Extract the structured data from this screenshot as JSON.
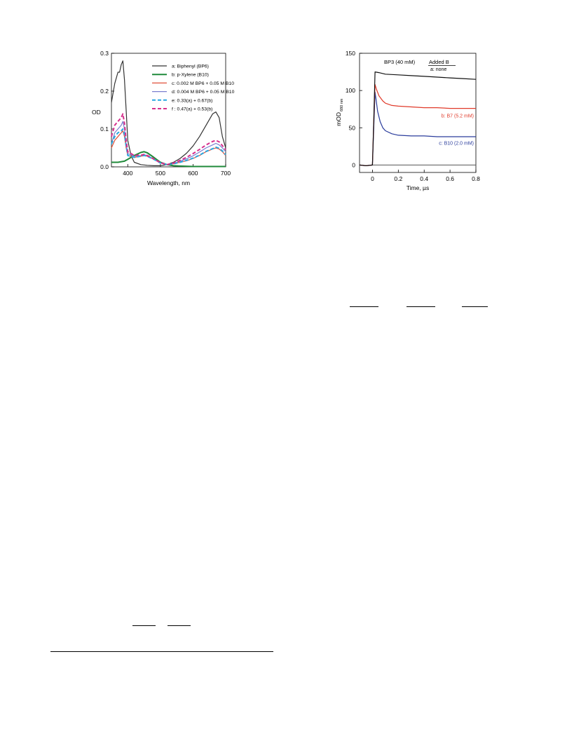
{
  "chart_data": [
    {
      "type": "line",
      "title": "",
      "xlabel": "Wavelength, nm",
      "ylabel": "OD",
      "xlim": [
        350,
        700
      ],
      "ylim": [
        0,
        0.3
      ],
      "xticks": [
        {
          "v": 400,
          "label": "400"
        },
        {
          "v": 500,
          "label": "500"
        },
        {
          "v": 600,
          "label": "600"
        },
        {
          "v": 700,
          "label": "700"
        }
      ],
      "yticks": [
        {
          "v": 0,
          "label": "0.0"
        },
        {
          "v": 0.1,
          "label": "0.1"
        },
        {
          "v": 0.2,
          "label": "0.2"
        },
        {
          "v": 0.3,
          "label": "0.3"
        }
      ],
      "legend_position": "upper-middle",
      "series": [
        {
          "name": "a: Biphenyl (BP6)",
          "color": "#333333",
          "width": 1.2,
          "dash": "",
          "x": [
            350,
            360,
            370,
            375,
            380,
            385,
            390,
            395,
            400,
            410,
            420,
            440,
            460,
            480,
            500,
            520,
            540,
            560,
            580,
            600,
            620,
            640,
            660,
            670,
            680,
            690,
            700
          ],
          "y": [
            0.17,
            0.22,
            0.25,
            0.25,
            0.27,
            0.28,
            0.23,
            0.15,
            0.07,
            0.03,
            0.012,
            0.006,
            0.004,
            0.003,
            0.003,
            0.006,
            0.012,
            0.022,
            0.036,
            0.055,
            0.08,
            0.11,
            0.14,
            0.145,
            0.13,
            0.08,
            0.05
          ]
        },
        {
          "name": "b: p-Xylene (B10)",
          "color": "#1f8a3a",
          "width": 2,
          "dash": "",
          "x": [
            350,
            370,
            390,
            400,
            420,
            440,
            450,
            460,
            480,
            500,
            520,
            540,
            560,
            600,
            650,
            700
          ],
          "y": [
            0.012,
            0.012,
            0.015,
            0.02,
            0.03,
            0.038,
            0.04,
            0.037,
            0.025,
            0.012,
            0.006,
            0.003,
            0.002,
            0.001,
            0.001,
            0.001
          ]
        },
        {
          "name": "c: 0.002 M BP6 + 0.05 M B10",
          "color": "#e0503a",
          "width": 1.2,
          "dash": "",
          "x": [
            350,
            360,
            370,
            380,
            385,
            390,
            395,
            400,
            420,
            440,
            450,
            460,
            480,
            500,
            520,
            540,
            560,
            580,
            600,
            620,
            640,
            660,
            670,
            680,
            690,
            700
          ],
          "y": [
            0.05,
            0.07,
            0.08,
            0.09,
            0.095,
            0.08,
            0.05,
            0.03,
            0.025,
            0.028,
            0.03,
            0.028,
            0.02,
            0.01,
            0.006,
            0.008,
            0.012,
            0.016,
            0.022,
            0.03,
            0.04,
            0.047,
            0.05,
            0.047,
            0.04,
            0.03
          ]
        },
        {
          "name": "d: 0.004 M BP6 + 0.05 M B10",
          "color": "#7b7fcf",
          "width": 1.2,
          "dash": "",
          "x": [
            350,
            360,
            370,
            380,
            385,
            390,
            395,
            400,
            420,
            440,
            450,
            460,
            480,
            500,
            520,
            540,
            560,
            580,
            600,
            620,
            640,
            660,
            670,
            680,
            690,
            700
          ],
          "y": [
            0.06,
            0.09,
            0.1,
            0.11,
            0.12,
            0.1,
            0.06,
            0.035,
            0.028,
            0.03,
            0.032,
            0.03,
            0.02,
            0.01,
            0.006,
            0.009,
            0.015,
            0.021,
            0.029,
            0.039,
            0.05,
            0.058,
            0.062,
            0.058,
            0.05,
            0.04
          ]
        },
        {
          "name": "e: 0.33(a) + 0.67(b)",
          "color": "#29a8e0",
          "width": 2,
          "dash": "5 3",
          "x": [
            350,
            360,
            370,
            380,
            385,
            390,
            395,
            400,
            420,
            440,
            450,
            460,
            480,
            500,
            520,
            540,
            560,
            580,
            600,
            620,
            640,
            660,
            670,
            680,
            690,
            700
          ],
          "y": [
            0.06,
            0.08,
            0.09,
            0.095,
            0.1,
            0.085,
            0.055,
            0.03,
            0.025,
            0.028,
            0.03,
            0.028,
            0.02,
            0.01,
            0.006,
            0.008,
            0.012,
            0.017,
            0.023,
            0.031,
            0.041,
            0.048,
            0.052,
            0.049,
            0.042,
            0.032
          ]
        },
        {
          "name": "f : 0.47(a) + 0.53(b)",
          "color": "#d62f8c",
          "width": 2,
          "dash": "5 3",
          "x": [
            350,
            360,
            370,
            380,
            385,
            390,
            395,
            400,
            420,
            440,
            450,
            460,
            480,
            500,
            520,
            540,
            560,
            580,
            600,
            620,
            640,
            660,
            670,
            680,
            690,
            700
          ],
          "y": [
            0.08,
            0.11,
            0.12,
            0.13,
            0.14,
            0.115,
            0.07,
            0.04,
            0.03,
            0.031,
            0.033,
            0.03,
            0.021,
            0.011,
            0.006,
            0.01,
            0.017,
            0.025,
            0.035,
            0.046,
            0.058,
            0.067,
            0.07,
            0.066,
            0.056,
            0.045
          ]
        }
      ]
    },
    {
      "type": "line",
      "title": "BP3 (40 mM)",
      "xlabel": "Time, µs",
      "ylabel": "mOD",
      "ylabel_sub": "680 nm",
      "xlim": [
        -0.1,
        0.8
      ],
      "ylim": [
        -10,
        150
      ],
      "xticks": [
        {
          "v": 0,
          "label": "0"
        },
        {
          "v": 0.2,
          "label": "0.2"
        },
        {
          "v": 0.4,
          "label": "0.4"
        },
        {
          "v": 0.6,
          "label": "0.6"
        },
        {
          "v": 0.8,
          "label": "0.8"
        }
      ],
      "yticks": [
        {
          "v": 0,
          "label": "0"
        },
        {
          "v": 50,
          "label": "50"
        },
        {
          "v": 100,
          "label": "100"
        },
        {
          "v": 150,
          "label": "150"
        }
      ],
      "legend_title": "Added B",
      "baseline": 0,
      "series": [
        {
          "name": "a: none",
          "color": "#111111",
          "x": [
            -0.1,
            -0.05,
            0,
            0.01,
            0.02,
            0.05,
            0.1,
            0.2,
            0.3,
            0.4,
            0.5,
            0.6,
            0.7,
            0.8
          ],
          "y": [
            0,
            -1,
            0,
            60,
            125,
            124,
            122,
            121,
            120,
            119,
            118,
            117,
            116,
            115
          ]
        },
        {
          "name": "b: B7 (5.2 mM)",
          "color": "#e03a2a",
          "x": [
            -0.1,
            -0.05,
            0,
            0.01,
            0.02,
            0.03,
            0.05,
            0.08,
            0.1,
            0.15,
            0.2,
            0.3,
            0.4,
            0.5,
            0.6,
            0.7,
            0.8
          ],
          "y": [
            0,
            -1,
            0,
            60,
            108,
            102,
            93,
            86,
            83,
            80,
            79,
            78,
            77,
            77,
            76,
            76,
            76
          ],
          "label_at": [
            0.8,
            64
          ]
        },
        {
          "name": "c: B10 (2.0 mM)",
          "color": "#2a3c9c",
          "x": [
            -0.1,
            -0.05,
            0,
            0.01,
            0.02,
            0.03,
            0.04,
            0.06,
            0.08,
            0.1,
            0.15,
            0.2,
            0.3,
            0.4,
            0.5,
            0.6,
            0.7,
            0.8
          ],
          "y": [
            0,
            -1,
            0,
            50,
            98,
            85,
            72,
            58,
            50,
            46,
            42,
            40,
            39,
            39,
            38,
            38,
            38,
            38
          ],
          "label_at": [
            0.8,
            27
          ]
        }
      ]
    }
  ]
}
